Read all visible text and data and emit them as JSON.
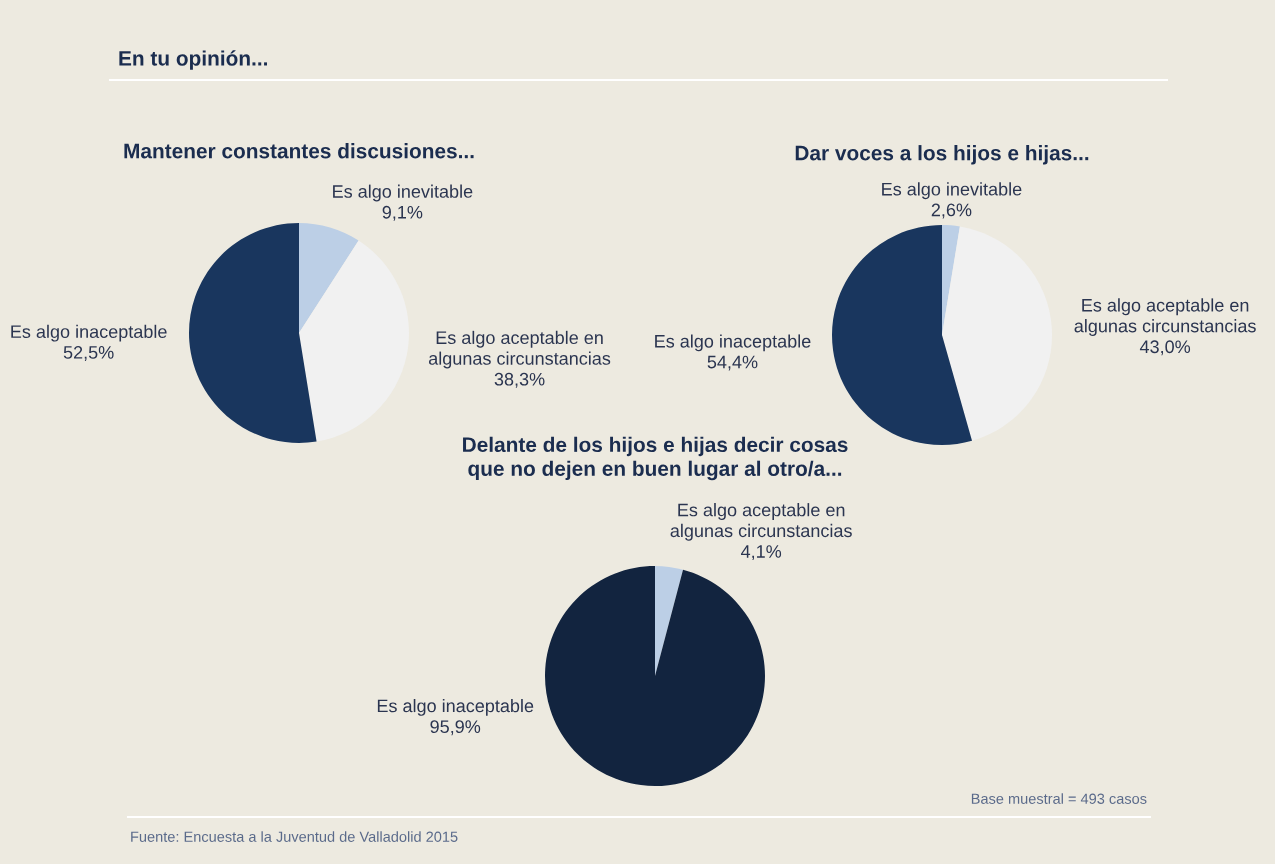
{
  "chart_data": [
    {
      "type": "pie",
      "title": "Mantener constantes discusiones...",
      "annotations": [
        "En tu opinión..."
      ],
      "categories": [
        "Es algo inevitable",
        "Es algo aceptable en\nalgunas circunstancias",
        "Es algo inaceptable"
      ],
      "values": [
        9.1,
        38.3,
        52.5
      ],
      "value_labels": [
        "9,1%",
        "38,3%",
        "52,5%"
      ],
      "colors": [
        "#bccfe6",
        "#f1f1f1",
        "#19365e"
      ]
    },
    {
      "type": "pie",
      "title": "Dar voces a los hijos e hijas...",
      "categories": [
        "Es algo inevitable",
        "Es algo aceptable en\nalgunas circunstancias",
        "Es algo inaceptable"
      ],
      "values": [
        2.6,
        43.0,
        54.4
      ],
      "value_labels": [
        "2,6%",
        "43,0%",
        "54,4%"
      ],
      "colors": [
        "#bccfe6",
        "#f1f1f1",
        "#19365e"
      ]
    },
    {
      "type": "pie",
      "title": "Delante de los hijos e hijas decir cosas\nque no dejen en buen lugar al otro/a...",
      "annotations": [
        "Base muestral = 493 casos",
        "Fuente: Encuesta a la Juventud de Valladolid 2015"
      ],
      "categories": [
        "Es algo aceptable en\nalgunas circunstancias",
        "Es algo inaceptable"
      ],
      "values": [
        4.1,
        95.9
      ],
      "value_labels": [
        "4,1%",
        "95,9%"
      ],
      "colors": [
        "#bccfe6",
        "#12243f"
      ]
    }
  ]
}
